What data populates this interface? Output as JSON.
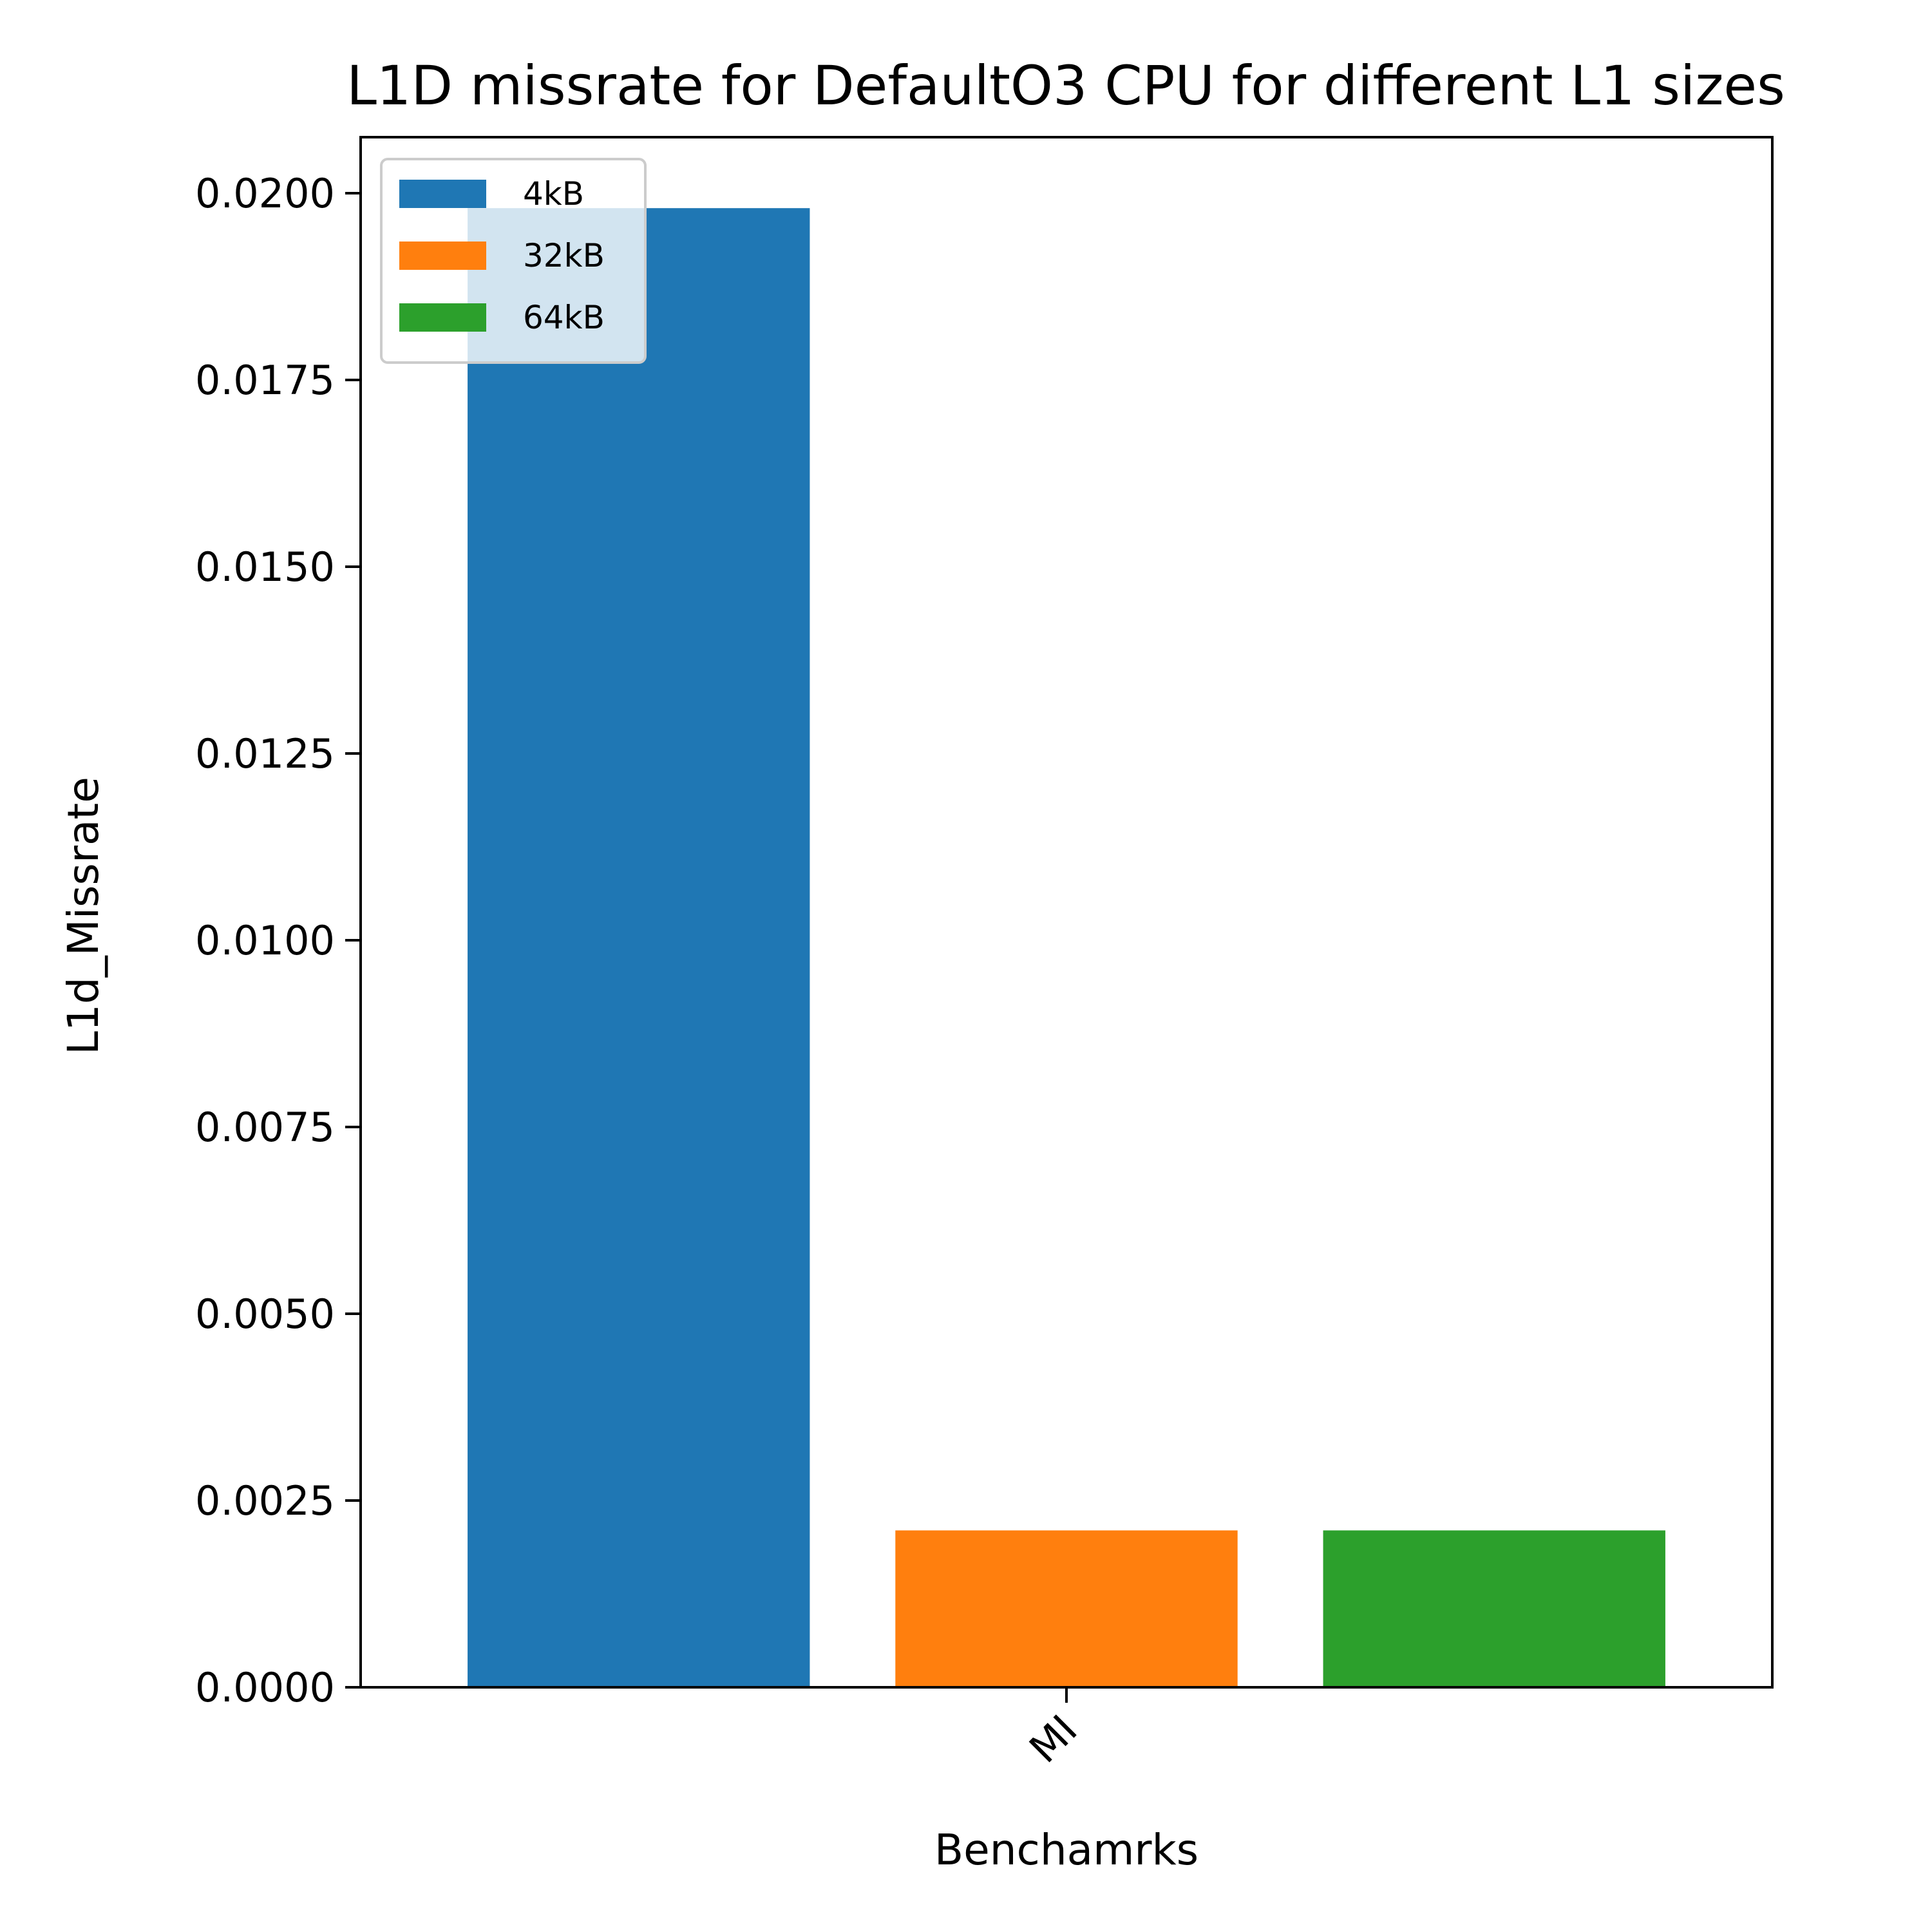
{
  "chart_data": {
    "type": "bar",
    "title": "L1D missrate for DefaultO3 CPU for different L1 sizes",
    "xlabel": "Benchamrks",
    "ylabel": "L1d_Missrate",
    "categories": [
      "MI"
    ],
    "series": [
      {
        "name": "4kB",
        "color": "#1f77b4",
        "values": [
          0.0198
        ]
      },
      {
        "name": "32kB",
        "color": "#ff7f0e",
        "values": [
          0.0021
        ]
      },
      {
        "name": "64kB",
        "color": "#2ca02c",
        "values": [
          0.0021
        ]
      }
    ],
    "ylim": [
      0,
      0.02075
    ],
    "yticks": [
      {
        "value": 0.0,
        "label": "0.0000"
      },
      {
        "value": 0.0025,
        "label": "0.0025"
      },
      {
        "value": 0.005,
        "label": "0.0050"
      },
      {
        "value": 0.0075,
        "label": "0.0075"
      },
      {
        "value": 0.01,
        "label": "0.0100"
      },
      {
        "value": 0.0125,
        "label": "0.0125"
      },
      {
        "value": 0.015,
        "label": "0.0150"
      },
      {
        "value": 0.0175,
        "label": "0.0175"
      },
      {
        "value": 0.02,
        "label": "0.0200"
      }
    ],
    "grid": false,
    "legend": "upper-left"
  }
}
